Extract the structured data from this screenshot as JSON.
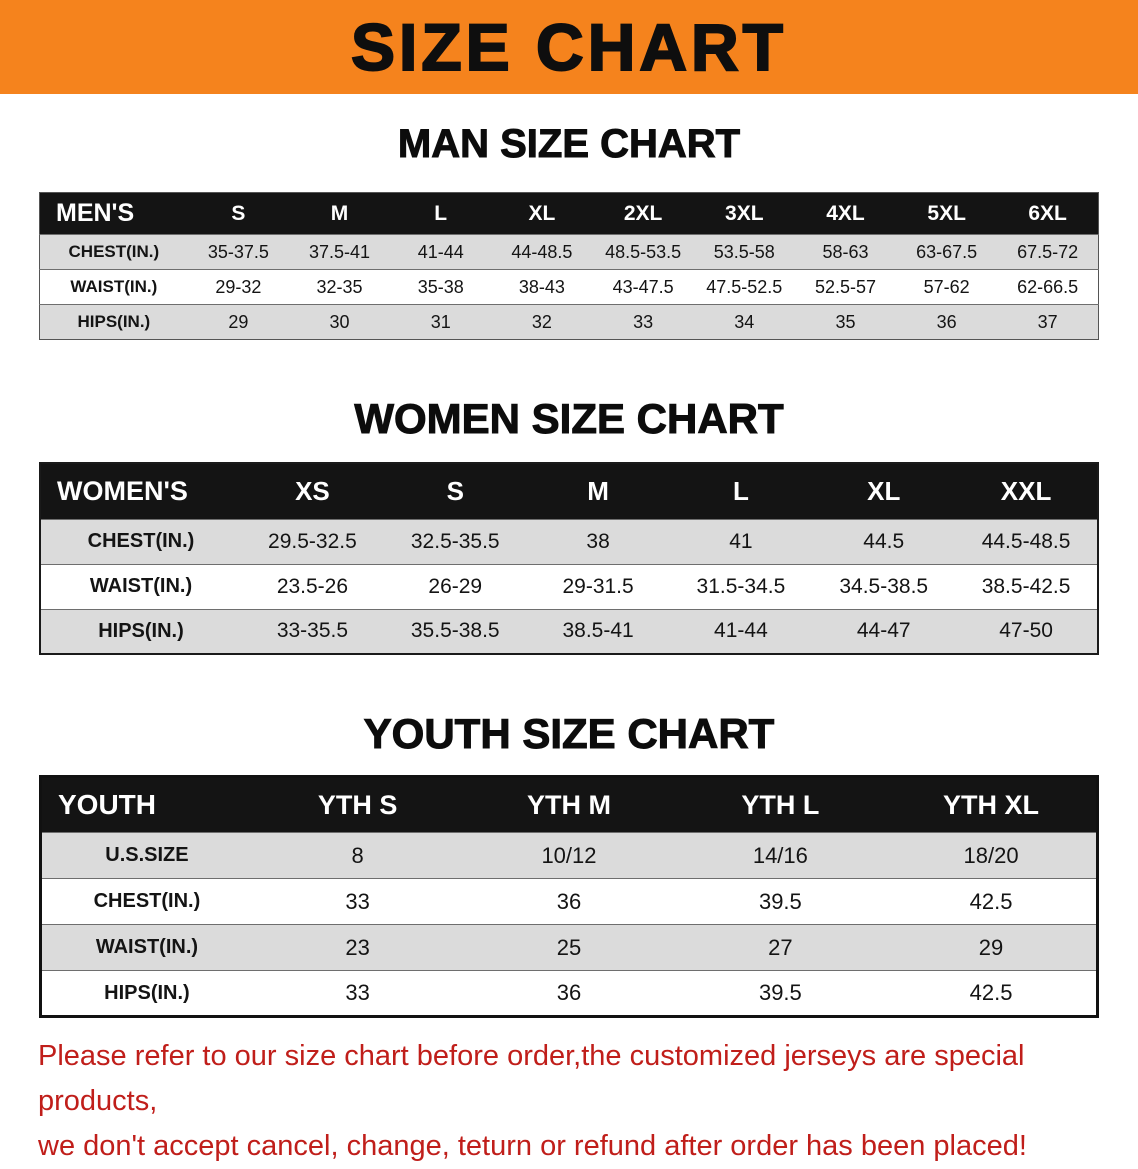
{
  "banner": {
    "title": "SIZE CHART",
    "bg_color": "#F5831D",
    "text_color": "#0e0e0e"
  },
  "sections": [
    {
      "id": "men",
      "heading": "MAN SIZE CHART",
      "header": [
        "MEN'S",
        "S",
        "M",
        "L",
        "XL",
        "2XL",
        "3XL",
        "4XL",
        "5XL",
        "6XL"
      ],
      "rows": [
        [
          "CHEST(IN.)",
          "35-37.5",
          "37.5-41",
          "41-44",
          "44-48.5",
          "48.5-53.5",
          "53.5-58",
          "58-63",
          "63-67.5",
          "67.5-72"
        ],
        [
          "WAIST(IN.)",
          "29-32",
          "32-35",
          "35-38",
          "38-43",
          "43-47.5",
          "47.5-52.5",
          "52.5-57",
          "57-62",
          "62-66.5"
        ],
        [
          "HIPS(IN.)",
          "29",
          "30",
          "31",
          "32",
          "33",
          "34",
          "35",
          "36",
          "37"
        ]
      ]
    },
    {
      "id": "women",
      "heading": "WOMEN SIZE CHART",
      "header": [
        "WOMEN'S",
        "XS",
        "S",
        "M",
        "L",
        "XL",
        "XXL"
      ],
      "rows": [
        [
          "CHEST(IN.)",
          "29.5-32.5",
          "32.5-35.5",
          "38",
          "41",
          "44.5",
          "44.5-48.5"
        ],
        [
          "WAIST(IN.)",
          "23.5-26",
          "26-29",
          "29-31.5",
          "31.5-34.5",
          "34.5-38.5",
          "38.5-42.5"
        ],
        [
          "HIPS(IN.)",
          "33-35.5",
          "35.5-38.5",
          "38.5-41",
          "41-44",
          "44-47",
          "47-50"
        ]
      ]
    },
    {
      "id": "youth",
      "heading": "YOUTH SIZE CHART",
      "header": [
        "YOUTH",
        "YTH S",
        "YTH M",
        "YTH L",
        "YTH XL"
      ],
      "rows": [
        [
          "U.S.SIZE",
          "8",
          "10/12",
          "14/16",
          "18/20"
        ],
        [
          "CHEST(IN.)",
          "33",
          "36",
          "39.5",
          "42.5"
        ],
        [
          "WAIST(IN.)",
          "23",
          "25",
          "27",
          "29"
        ],
        [
          "HIPS(IN.)",
          "33",
          "36",
          "39.5",
          "42.5"
        ]
      ]
    }
  ],
  "disclaimer": {
    "line1": "Please refer to our size chart before order,the customized jerseys are special products,",
    "line2": "we don't accept cancel, change, teturn or refund after order has been placed!",
    "color": "#C01E1A"
  }
}
